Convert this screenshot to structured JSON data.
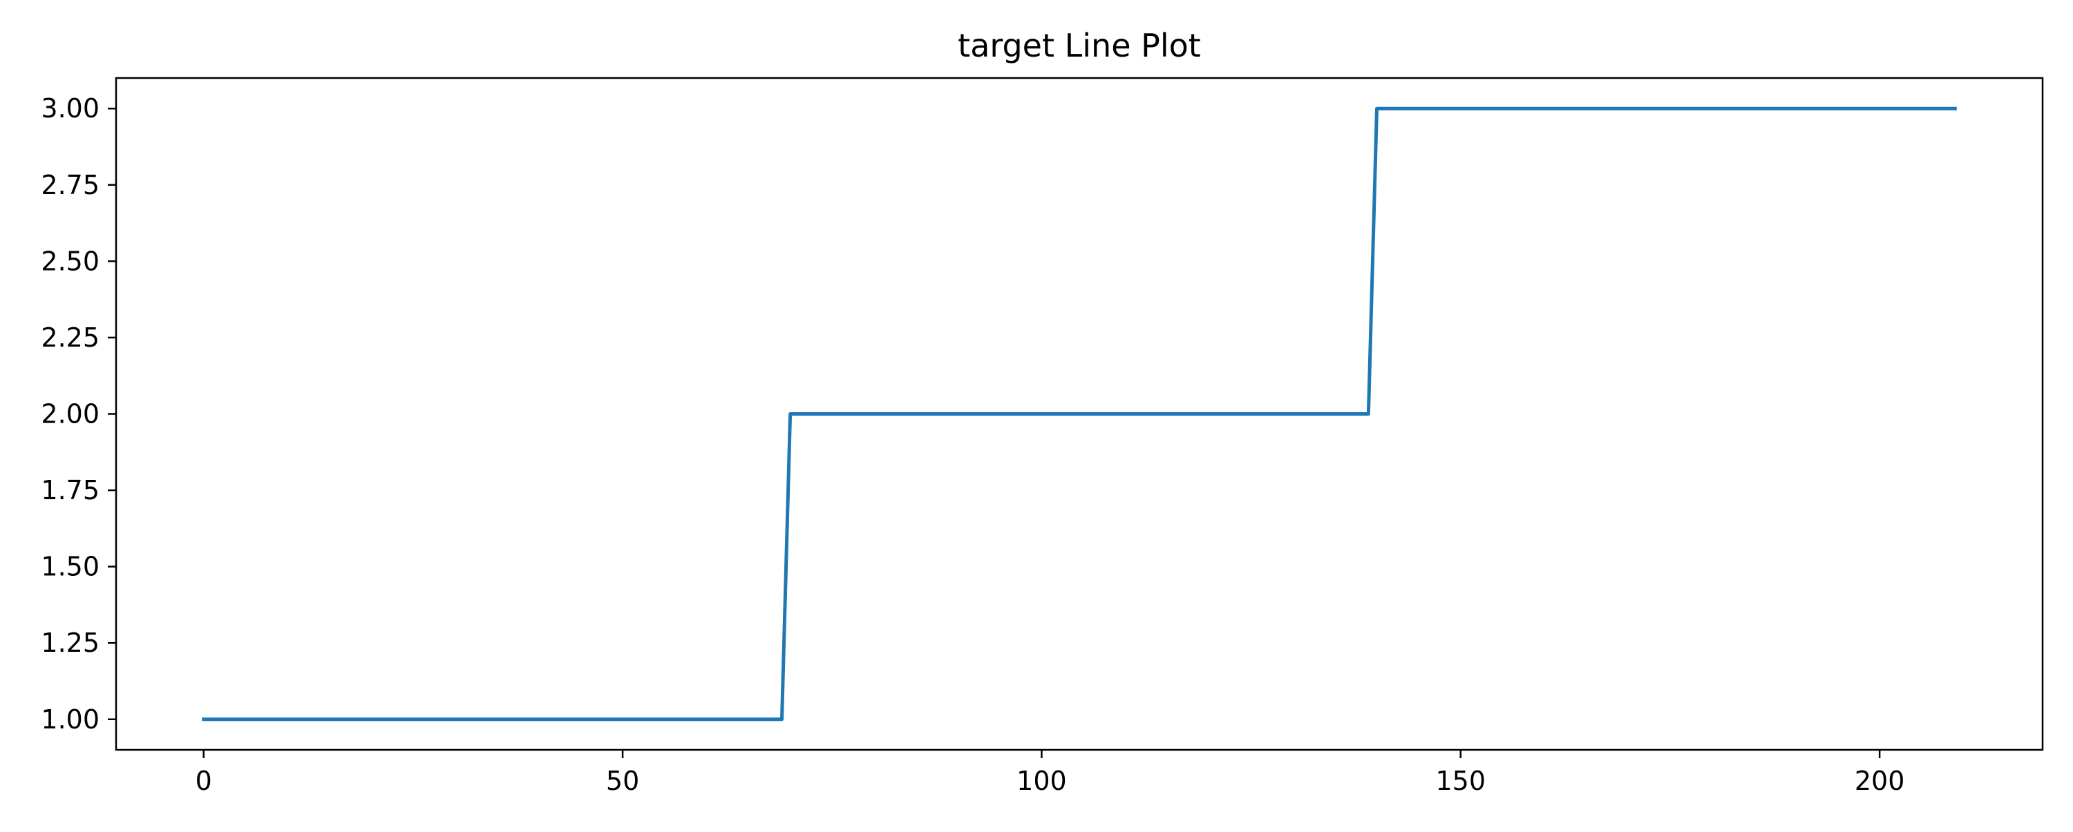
{
  "chart_data": {
    "type": "line",
    "title": "target Line Plot",
    "xlabel": "",
    "ylabel": "",
    "xlim": [
      -10.45,
      219.45
    ],
    "ylim": [
      0.9,
      3.1
    ],
    "xticks": [
      0,
      50,
      100,
      150,
      200
    ],
    "xtick_labels": [
      "0",
      "50",
      "100",
      "150",
      "200"
    ],
    "yticks": [
      1.0,
      1.25,
      1.5,
      1.75,
      2.0,
      2.25,
      2.5,
      2.75,
      3.0
    ],
    "ytick_labels": [
      "1.00",
      "1.25",
      "1.50",
      "1.75",
      "2.00",
      "2.25",
      "2.50",
      "2.75",
      "3.00"
    ],
    "grid": false,
    "series": [
      {
        "color": "#1f77b4",
        "x": [
          0,
          69,
          70,
          139,
          140,
          209
        ],
        "y": [
          1,
          1,
          2,
          2,
          3,
          3
        ]
      }
    ]
  }
}
